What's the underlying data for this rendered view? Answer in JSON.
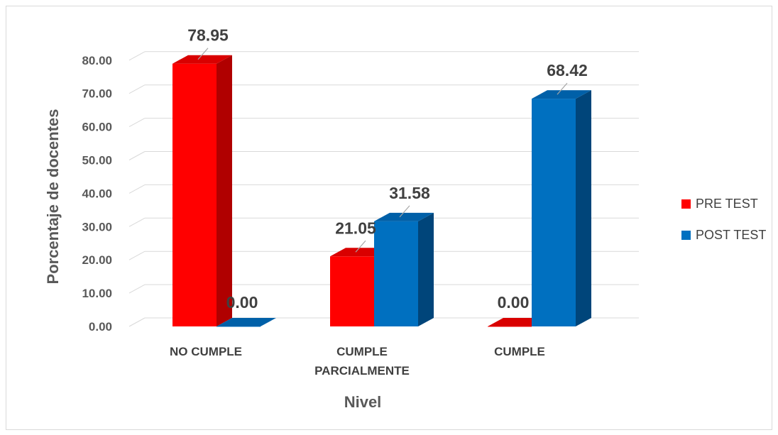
{
  "chart_data": {
    "type": "bar",
    "style": "3d-clustered-column",
    "title": "",
    "xlabel": "Nivel",
    "ylabel": "Porcentaje de docentes",
    "categories": [
      [
        "NO CUMPLE"
      ],
      [
        "CUMPLE",
        "PARCIALMENTE"
      ],
      [
        "CUMPLE"
      ]
    ],
    "series": [
      {
        "name": "PRE TEST",
        "values": [
          78.95,
          21.05,
          0.0
        ],
        "labels": [
          "78.95",
          "21.05",
          "0.00"
        ],
        "color": "#ff0000",
        "side_color": "#b00000",
        "top_color": "#d90000"
      },
      {
        "name": "POST TEST",
        "values": [
          0.0,
          31.58,
          68.42
        ],
        "labels": [
          "0.00",
          "31.58",
          "68.42"
        ],
        "color": "#0070c0",
        "side_color": "#00457a",
        "top_color": "#0060a8"
      }
    ],
    "yticks": [
      "0.00",
      "10.00",
      "20.00",
      "30.00",
      "40.00",
      "50.00",
      "60.00",
      "70.00",
      "80.00"
    ],
    "ylim": [
      0,
      80
    ],
    "grid": true,
    "legend_position": "right"
  }
}
